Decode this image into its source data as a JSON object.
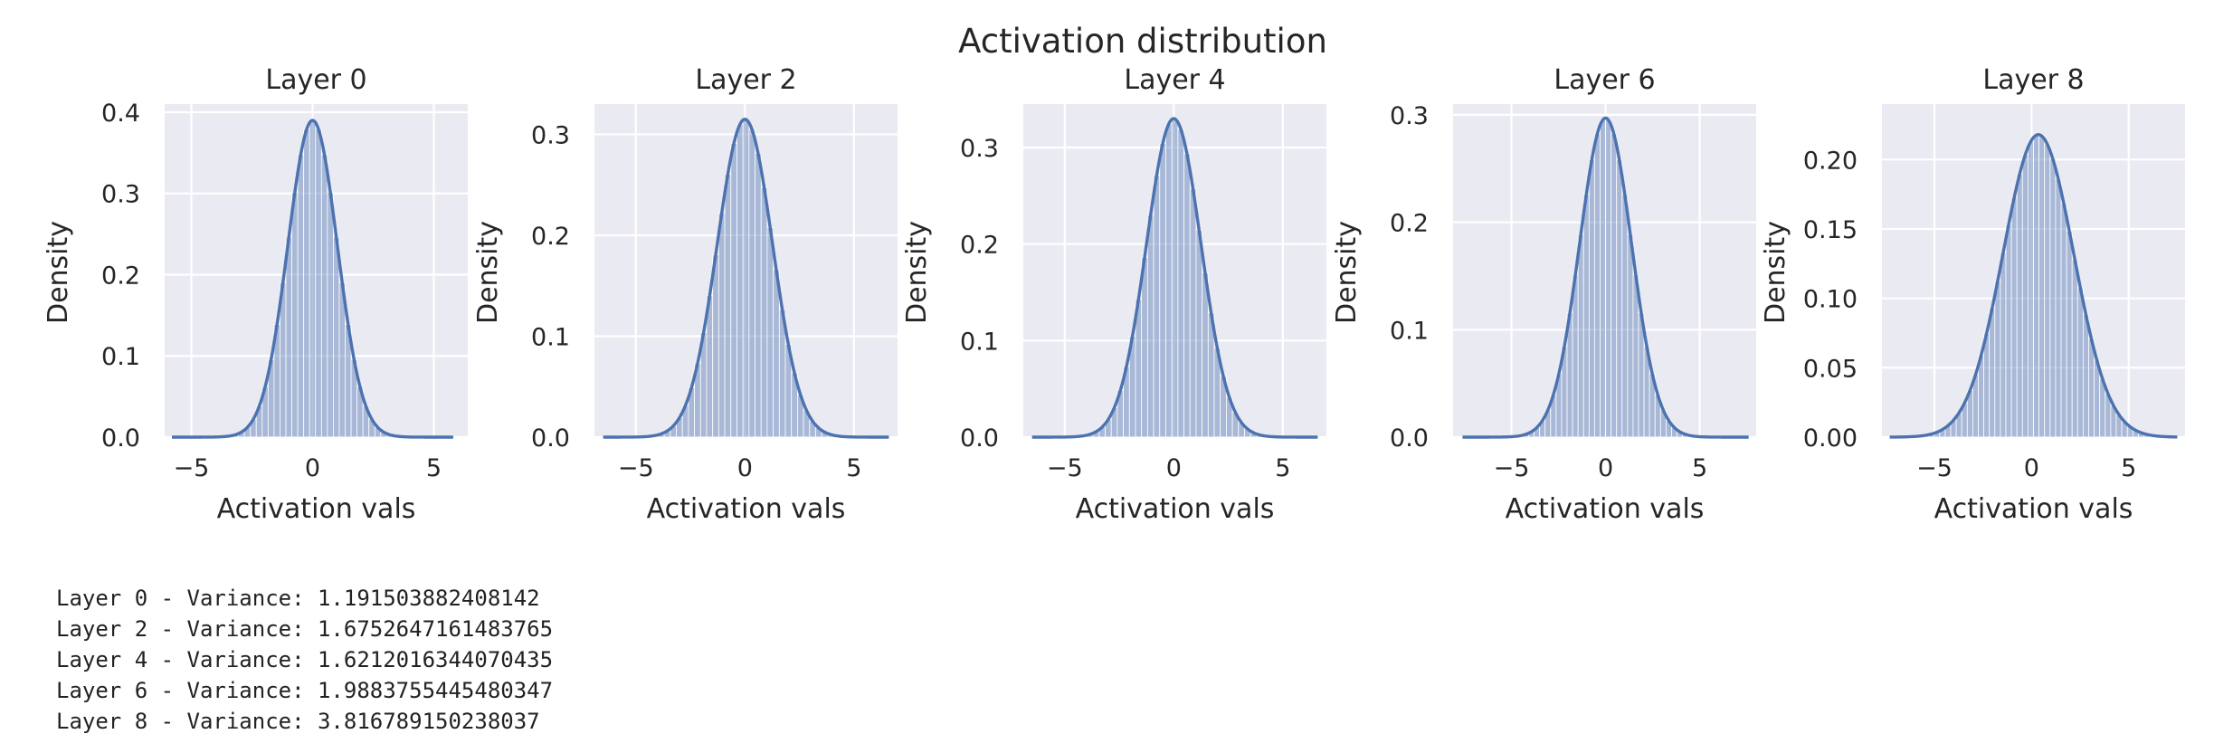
{
  "chart_data": {
    "type": "bar",
    "title": "Activation distribution",
    "panels": [
      {
        "title": "Layer 0",
        "xlabel": "Activation vals",
        "ylabel": "Density",
        "xlim": [
          -6.1,
          6.4
        ],
        "ylim": [
          0,
          0.41
        ],
        "xticks": [
          -5,
          0,
          5
        ],
        "yticks": [
          0.0,
          0.1,
          0.2,
          0.3,
          0.4
        ],
        "ytick_labels": [
          "0.0",
          "0.1",
          "0.2",
          "0.3",
          "0.4"
        ],
        "kde_mean": 0.0,
        "kde_std": 1.02,
        "kde_peak": 0.39,
        "bins": [
          -5.5,
          5.5
        ],
        "bin_count": 45
      },
      {
        "title": "Layer 2",
        "xlabel": "Activation vals",
        "ylabel": "Density",
        "xlim": [
          -6.9,
          7.0
        ],
        "ylim": [
          0,
          0.33
        ],
        "xticks": [
          -5,
          0,
          5
        ],
        "yticks": [
          0.0,
          0.1,
          0.2,
          0.3
        ],
        "ytick_labels": [
          "0.0",
          "0.1",
          "0.2",
          "0.3"
        ],
        "kde_mean": 0.0,
        "kde_std": 1.27,
        "kde_peak": 0.315,
        "bins": [
          -6.2,
          6.3
        ],
        "bin_count": 45
      },
      {
        "title": "Layer 4",
        "xlabel": "Activation vals",
        "ylabel": "Density",
        "xlim": [
          -6.9,
          7.0
        ],
        "ylim": [
          0,
          0.345
        ],
        "xticks": [
          -5,
          0,
          5
        ],
        "yticks": [
          0.0,
          0.1,
          0.2,
          0.3
        ],
        "ytick_labels": [
          "0.0",
          "0.1",
          "0.2",
          "0.3"
        ],
        "kde_mean": 0.0,
        "kde_std": 1.25,
        "kde_peak": 0.33,
        "bins": [
          -6.2,
          6.3
        ],
        "bin_count": 45
      },
      {
        "title": "Layer 6",
        "xlabel": "Activation vals",
        "ylabel": "Density",
        "xlim": [
          -8.1,
          8.0
        ],
        "ylim": [
          0,
          0.31
        ],
        "xticks": [
          -5,
          0,
          5
        ],
        "yticks": [
          0.0,
          0.1,
          0.2,
          0.3
        ],
        "ytick_labels": [
          "0.0",
          "0.1",
          "0.2",
          "0.3"
        ],
        "kde_mean": 0.0,
        "kde_std": 1.38,
        "kde_peak": 0.297,
        "bins": [
          -7.3,
          7.3
        ],
        "bin_count": 50
      },
      {
        "title": "Layer 8",
        "xlabel": "Activation vals",
        "ylabel": "Density",
        "xlim": [
          -7.7,
          7.9
        ],
        "ylim": [
          0,
          0.24
        ],
        "xticks": [
          -5,
          0,
          5
        ],
        "yticks": [
          0.0,
          0.05,
          0.1,
          0.15,
          0.2
        ],
        "ytick_labels": [
          "0.00",
          "0.05",
          "0.10",
          "0.15",
          "0.20"
        ],
        "kde_mean": 0.35,
        "kde_std": 1.82,
        "kde_peak": 0.218,
        "bins": [
          -7.0,
          7.2
        ],
        "bin_count": 50
      }
    ]
  },
  "output_lines": [
    "Layer 0 - Variance: 1.191503882408142",
    "Layer 2 - Variance: 1.6752647161483765",
    "Layer 4 - Variance: 1.6212016344070435",
    "Layer 6 - Variance: 1.9883755445480347",
    "Layer 8 - Variance: 3.816789150238037"
  ],
  "colors": {
    "axes_bg": "#eaeaf2",
    "grid": "#ffffff",
    "line": "#4c72b0",
    "bar_fill": "#4c72b0",
    "text": "#262626"
  }
}
